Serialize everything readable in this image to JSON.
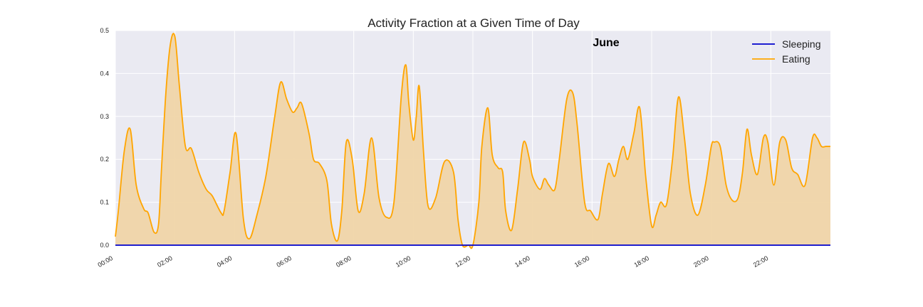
{
  "chart_data": {
    "type": "area",
    "title": "Activity Fraction at a Given Time of Day",
    "annotation": "June",
    "xlabel": "",
    "ylabel": "",
    "xlim": [
      0,
      24
    ],
    "ylim": [
      0,
      0.5
    ],
    "x_unit": "hours",
    "x_ticks": [
      {
        "value": 0,
        "label": "00:00"
      },
      {
        "value": 2,
        "label": "02:00"
      },
      {
        "value": 4,
        "label": "04:00"
      },
      {
        "value": 6,
        "label": "06:00"
      },
      {
        "value": 8,
        "label": "08:00"
      },
      {
        "value": 10,
        "label": "10:00"
      },
      {
        "value": 12,
        "label": "12:00"
      },
      {
        "value": 14,
        "label": "14:00"
      },
      {
        "value": 16,
        "label": "16:00"
      },
      {
        "value": 18,
        "label": "18:00"
      },
      {
        "value": 20,
        "label": "20:00"
      },
      {
        "value": 22,
        "label": "22:00"
      }
    ],
    "y_ticks": [
      {
        "value": 0.0,
        "label": "0.0"
      },
      {
        "value": 0.1,
        "label": "0.1"
      },
      {
        "value": 0.2,
        "label": "0.2"
      },
      {
        "value": 0.3,
        "label": "0.3"
      },
      {
        "value": 0.4,
        "label": "0.4"
      },
      {
        "value": 0.5,
        "label": "0.5"
      }
    ],
    "grid": true,
    "legend_position": "top-right",
    "series": [
      {
        "name": "Sleeping",
        "color": "#0000cc",
        "filled": false,
        "x": [
          0,
          24
        ],
        "y": [
          0,
          0
        ]
      },
      {
        "name": "Eating",
        "color": "#ffa500",
        "fill_color": "#f0d5a8",
        "filled": true,
        "x": [
          0.0,
          0.1,
          0.3,
          0.5,
          0.7,
          0.95,
          1.1,
          1.3,
          1.45,
          1.55,
          1.7,
          1.85,
          2.0,
          2.15,
          2.35,
          2.55,
          2.8,
          3.05,
          3.25,
          3.55,
          3.65,
          3.85,
          4.05,
          4.3,
          4.5,
          4.75,
          5.05,
          5.35,
          5.55,
          5.75,
          5.95,
          6.1,
          6.25,
          6.5,
          6.65,
          6.85,
          7.1,
          7.25,
          7.45,
          7.6,
          7.75,
          7.95,
          8.15,
          8.35,
          8.6,
          8.85,
          9.1,
          9.35,
          9.6,
          9.75,
          9.85,
          10.0,
          10.1,
          10.2,
          10.35,
          10.5,
          10.75,
          11.05,
          11.35,
          11.5,
          11.65,
          11.85,
          12.0,
          12.2,
          12.3,
          12.5,
          12.65,
          12.85,
          13.0,
          13.1,
          13.3,
          13.5,
          13.7,
          13.9,
          14.0,
          14.25,
          14.4,
          14.55,
          14.75,
          14.9,
          15.15,
          15.35,
          15.5,
          15.75,
          15.95,
          16.2,
          16.35,
          16.55,
          16.75,
          16.9,
          17.05,
          17.2,
          17.4,
          17.6,
          17.8,
          18.0,
          18.15,
          18.3,
          18.5,
          18.7,
          18.9,
          19.1,
          19.3,
          19.55,
          19.8,
          20.0,
          20.1,
          20.3,
          20.5,
          20.7,
          20.9,
          21.05,
          21.2,
          21.35,
          21.55,
          21.75,
          21.9,
          22.1,
          22.3,
          22.5,
          22.7,
          22.9,
          23.15,
          23.4,
          23.55,
          23.7,
          23.85,
          24.0
        ],
        "y": [
          0.02,
          0.08,
          0.22,
          0.27,
          0.14,
          0.085,
          0.075,
          0.03,
          0.05,
          0.18,
          0.36,
          0.47,
          0.485,
          0.37,
          0.23,
          0.225,
          0.17,
          0.13,
          0.115,
          0.075,
          0.08,
          0.17,
          0.26,
          0.06,
          0.015,
          0.07,
          0.16,
          0.3,
          0.38,
          0.34,
          0.31,
          0.32,
          0.33,
          0.26,
          0.2,
          0.19,
          0.15,
          0.05,
          0.01,
          0.08,
          0.24,
          0.2,
          0.08,
          0.12,
          0.25,
          0.11,
          0.065,
          0.1,
          0.35,
          0.42,
          0.33,
          0.245,
          0.3,
          0.37,
          0.21,
          0.09,
          0.11,
          0.195,
          0.17,
          0.06,
          0.0,
          0.0,
          0.0,
          0.1,
          0.23,
          0.32,
          0.21,
          0.18,
          0.17,
          0.08,
          0.035,
          0.13,
          0.24,
          0.2,
          0.16,
          0.13,
          0.155,
          0.14,
          0.13,
          0.2,
          0.34,
          0.355,
          0.28,
          0.1,
          0.08,
          0.06,
          0.12,
          0.19,
          0.16,
          0.2,
          0.23,
          0.2,
          0.26,
          0.32,
          0.16,
          0.045,
          0.07,
          0.1,
          0.095,
          0.2,
          0.345,
          0.25,
          0.12,
          0.07,
          0.14,
          0.23,
          0.24,
          0.23,
          0.14,
          0.105,
          0.11,
          0.17,
          0.27,
          0.21,
          0.165,
          0.25,
          0.24,
          0.14,
          0.24,
          0.245,
          0.18,
          0.165,
          0.14,
          0.25,
          0.25,
          0.23,
          0.23,
          0.23
        ]
      }
    ]
  }
}
